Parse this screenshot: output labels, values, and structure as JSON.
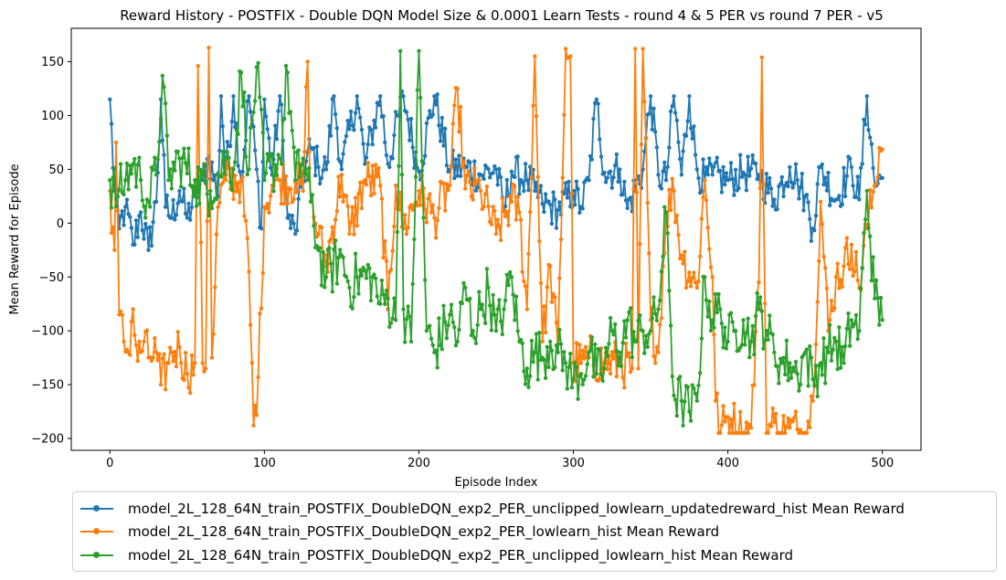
{
  "chart_data": {
    "type": "line",
    "title": "Reward History - POSTFIX - Double DQN Model Size & 0.0001 Learn Tests - round 4 & 5 PER vs round 7 PER - v5",
    "xlabel": "Episode Index",
    "ylabel": "Mean Reward for Episode",
    "xlim": [
      -25,
      525
    ],
    "ylim": [
      -211,
      181
    ],
    "xticks": [
      0,
      100,
      200,
      300,
      400,
      500
    ],
    "yticks": [
      -200,
      -150,
      -100,
      -50,
      0,
      50,
      100,
      150
    ],
    "grid": false,
    "legend_position": "below",
    "markers": "dot",
    "series": [
      {
        "name": "model_2L_128_64N_train_POSTFIX_DoubleDQN_exp2_PER_unclipped_lowlearn_updatedreward_hist Mean Reward",
        "color": "#1f77b4",
        "keypoints": [
          [
            0,
            115
          ],
          [
            3,
            30
          ],
          [
            6,
            -5
          ],
          [
            10,
            15
          ],
          [
            15,
            -20
          ],
          [
            20,
            10
          ],
          [
            25,
            -25
          ],
          [
            30,
            20
          ],
          [
            33,
            115
          ],
          [
            36,
            15
          ],
          [
            40,
            5
          ],
          [
            45,
            30
          ],
          [
            50,
            5
          ],
          [
            55,
            25
          ],
          [
            60,
            40
          ],
          [
            64,
            62
          ],
          [
            70,
            25
          ],
          [
            72,
            118
          ],
          [
            75,
            45
          ],
          [
            80,
            118
          ],
          [
            85,
            40
          ],
          [
            90,
            118
          ],
          [
            95,
            50
          ],
          [
            98,
            -5
          ],
          [
            100,
            115
          ],
          [
            105,
            45
          ],
          [
            110,
            118
          ],
          [
            115,
            5
          ],
          [
            120,
            -10
          ],
          [
            125,
            45
          ],
          [
            130,
            70
          ],
          [
            135,
            52
          ],
          [
            140,
            50
          ],
          [
            145,
            118
          ],
          [
            150,
            50
          ],
          [
            160,
            118
          ],
          [
            165,
            55
          ],
          [
            175,
            118
          ],
          [
            180,
            55
          ],
          [
            190,
            118
          ],
          [
            200,
            48
          ],
          [
            210,
            118
          ],
          [
            220,
            50
          ],
          [
            230,
            52
          ],
          [
            240,
            45
          ],
          [
            250,
            50
          ],
          [
            255,
            12
          ],
          [
            260,
            48
          ],
          [
            270,
            40
          ],
          [
            275,
            30
          ],
          [
            280,
            18
          ],
          [
            290,
            12
          ],
          [
            300,
            30
          ],
          [
            305,
            15
          ],
          [
            310,
            40
          ],
          [
            315,
            115
          ],
          [
            320,
            47
          ],
          [
            330,
            50
          ],
          [
            335,
            14
          ],
          [
            345,
            50
          ],
          [
            350,
            118
          ],
          [
            355,
            45
          ],
          [
            360,
            40
          ],
          [
            365,
            118
          ],
          [
            370,
            45
          ],
          [
            375,
            118
          ],
          [
            380,
            50
          ],
          [
            385,
            40
          ],
          [
            390,
            45
          ],
          [
            400,
            40
          ],
          [
            410,
            47
          ],
          [
            420,
            45
          ],
          [
            430,
            22
          ],
          [
            440,
            52
          ],
          [
            445,
            40
          ],
          [
            450,
            25
          ],
          [
            455,
            -5
          ],
          [
            460,
            52
          ],
          [
            470,
            22
          ],
          [
            480,
            52
          ],
          [
            485,
            22
          ],
          [
            490,
            118
          ],
          [
            495,
            35
          ],
          [
            500,
            42
          ]
        ]
      },
      {
        "name": "model_2L_128_64N_train_POSTFIX_DoubleDQN_exp2_PER_lowlearn_hist Mean Reward",
        "color": "#ff7f0e",
        "keypoints": [
          [
            0,
            30
          ],
          [
            3,
            -25
          ],
          [
            4,
            75
          ],
          [
            6,
            -85
          ],
          [
            9,
            -110
          ],
          [
            12,
            -120
          ],
          [
            15,
            -80
          ],
          [
            18,
            -128
          ],
          [
            22,
            -110
          ],
          [
            25,
            -125
          ],
          [
            30,
            -120
          ],
          [
            33,
            -150
          ],
          [
            38,
            -130
          ],
          [
            40,
            -120
          ],
          [
            45,
            -115
          ],
          [
            50,
            -140
          ],
          [
            55,
            -130
          ],
          [
            57,
            146
          ],
          [
            60,
            -130
          ],
          [
            62,
            -135
          ],
          [
            64,
            163
          ],
          [
            66,
            -125
          ],
          [
            70,
            15
          ],
          [
            75,
            40
          ],
          [
            85,
            40
          ],
          [
            90,
            -45
          ],
          [
            93,
            -188
          ],
          [
            96,
            -143
          ],
          [
            100,
            15
          ],
          [
            105,
            35
          ],
          [
            110,
            40
          ],
          [
            120,
            38
          ],
          [
            125,
            30
          ],
          [
            128,
            150
          ],
          [
            130,
            20
          ],
          [
            135,
            -10
          ],
          [
            140,
            -40
          ],
          [
            150,
            45
          ],
          [
            155,
            -10
          ],
          [
            165,
            40
          ],
          [
            175,
            35
          ],
          [
            180,
            -80
          ],
          [
            185,
            35
          ],
          [
            190,
            -5
          ],
          [
            200,
            30
          ],
          [
            210,
            5
          ],
          [
            220,
            35
          ],
          [
            225,
            125
          ],
          [
            230,
            32
          ],
          [
            240,
            30
          ],
          [
            250,
            -10
          ],
          [
            260,
            20
          ],
          [
            265,
            10
          ],
          [
            270,
            -80
          ],
          [
            275,
            155
          ],
          [
            280,
            -110
          ],
          [
            285,
            -40
          ],
          [
            290,
            -120
          ],
          [
            295,
            162
          ],
          [
            298,
            155
          ],
          [
            300,
            -130
          ],
          [
            305,
            -130
          ],
          [
            310,
            -125
          ],
          [
            320,
            -130
          ],
          [
            330,
            -130
          ],
          [
            338,
            -135
          ],
          [
            340,
            162
          ],
          [
            342,
            -135
          ],
          [
            345,
            162
          ],
          [
            350,
            -90
          ],
          [
            355,
            -120
          ],
          [
            360,
            10
          ],
          [
            365,
            30
          ],
          [
            370,
            -30
          ],
          [
            380,
            -60
          ],
          [
            385,
            40
          ],
          [
            390,
            -50
          ],
          [
            392,
            -165
          ],
          [
            395,
            -195
          ],
          [
            400,
            -180
          ],
          [
            410,
            -195
          ],
          [
            415,
            -190
          ],
          [
            420,
            -55
          ],
          [
            422,
            154
          ],
          [
            425,
            -195
          ],
          [
            430,
            -185
          ],
          [
            435,
            -195
          ],
          [
            440,
            -190
          ],
          [
            450,
            -195
          ],
          [
            455,
            -165
          ],
          [
            460,
            20
          ],
          [
            465,
            -100
          ],
          [
            470,
            -50
          ],
          [
            475,
            -40
          ],
          [
            480,
            -20
          ],
          [
            485,
            -60
          ],
          [
            490,
            -5
          ],
          [
            495,
            35
          ],
          [
            498,
            70
          ]
        ]
      },
      {
        "name": "model_2L_128_64N_train_POSTFIX_DoubleDQN_exp2_PER_unclipped_lowlearn_hist Mean Reward",
        "color": "#2ca02c",
        "keypoints": [
          [
            0,
            40
          ],
          [
            5,
            25
          ],
          [
            10,
            40
          ],
          [
            15,
            55
          ],
          [
            20,
            40
          ],
          [
            25,
            20
          ],
          [
            30,
            45
          ],
          [
            34,
            137
          ],
          [
            38,
            40
          ],
          [
            45,
            60
          ],
          [
            55,
            40
          ],
          [
            65,
            30
          ],
          [
            75,
            60
          ],
          [
            80,
            50
          ],
          [
            85,
            140
          ],
          [
            90,
            50
          ],
          [
            95,
            145
          ],
          [
            100,
            40
          ],
          [
            110,
            60
          ],
          [
            115,
            140
          ],
          [
            120,
            40
          ],
          [
            125,
            60
          ],
          [
            130,
            20
          ],
          [
            135,
            -25
          ],
          [
            140,
            -50
          ],
          [
            150,
            -30
          ],
          [
            155,
            -60
          ],
          [
            160,
            -50
          ],
          [
            170,
            -50
          ],
          [
            175,
            -75
          ],
          [
            180,
            -70
          ],
          [
            185,
            -90
          ],
          [
            188,
            160
          ],
          [
            190,
            -80
          ],
          [
            195,
            -110
          ],
          [
            200,
            160
          ],
          [
            205,
            -100
          ],
          [
            210,
            -120
          ],
          [
            220,
            -85
          ],
          [
            225,
            -110
          ],
          [
            230,
            -60
          ],
          [
            235,
            -100
          ],
          [
            240,
            -80
          ],
          [
            245,
            -60
          ],
          [
            250,
            -100
          ],
          [
            255,
            -80
          ],
          [
            260,
            -50
          ],
          [
            265,
            -110
          ],
          [
            270,
            -135
          ],
          [
            275,
            -120
          ],
          [
            280,
            -125
          ],
          [
            285,
            -110
          ],
          [
            290,
            -120
          ],
          [
            295,
            -130
          ],
          [
            300,
            -145
          ],
          [
            305,
            -140
          ],
          [
            310,
            -120
          ],
          [
            315,
            -140
          ],
          [
            320,
            -135
          ],
          [
            325,
            -100
          ],
          [
            330,
            -120
          ],
          [
            335,
            -90
          ],
          [
            340,
            -110
          ],
          [
            345,
            -100
          ],
          [
            350,
            -100
          ],
          [
            355,
            -80
          ],
          [
            360,
            10
          ],
          [
            365,
            -160
          ],
          [
            370,
            -165
          ],
          [
            375,
            -175
          ],
          [
            380,
            -165
          ],
          [
            385,
            -50
          ],
          [
            390,
            -90
          ],
          [
            395,
            -80
          ],
          [
            400,
            -110
          ],
          [
            405,
            -100
          ],
          [
            410,
            -90
          ],
          [
            415,
            -110
          ],
          [
            420,
            -80
          ],
          [
            425,
            -100
          ],
          [
            430,
            -120
          ],
          [
            435,
            -130
          ],
          [
            440,
            -130
          ],
          [
            445,
            -140
          ],
          [
            450,
            -120
          ],
          [
            455,
            -145
          ],
          [
            460,
            -130
          ],
          [
            465,
            -120
          ],
          [
            470,
            -110
          ],
          [
            475,
            -130
          ],
          [
            480,
            -90
          ],
          [
            485,
            -100
          ],
          [
            490,
            30
          ],
          [
            495,
            -70
          ],
          [
            500,
            -90
          ]
        ]
      }
    ]
  }
}
